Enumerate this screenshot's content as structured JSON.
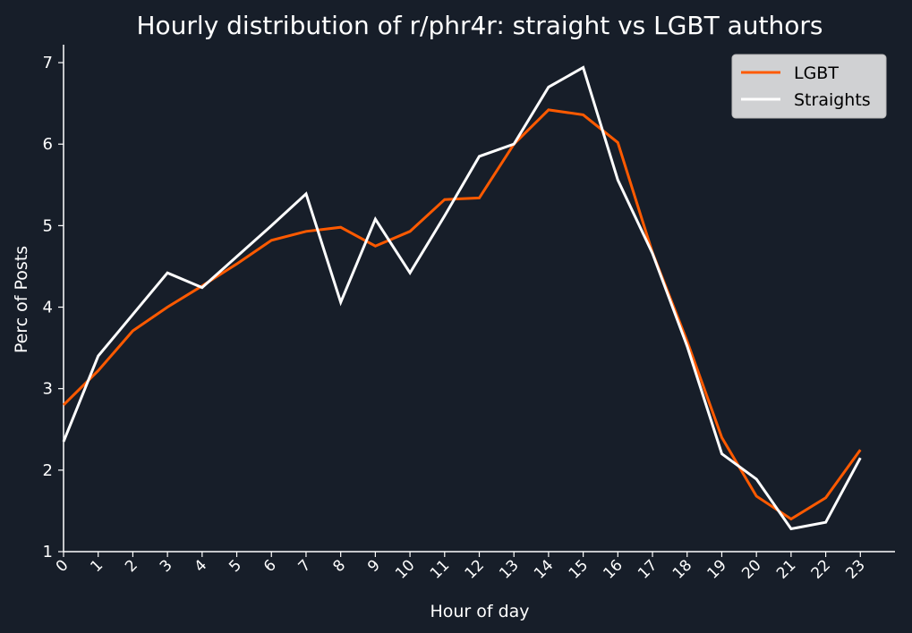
{
  "colors": {
    "background": "#171e29",
    "axis": "#ffffff",
    "lgbt": "#ff5a00",
    "straights": "#ffffff",
    "legend_bg": "#d0d1d3"
  },
  "chart_data": {
    "type": "line",
    "title": "Hourly distribution of r/phr4r: straight vs LGBT authors",
    "xlabel": "Hour of day",
    "ylabel": "Perc of Posts",
    "x": [
      0,
      1,
      2,
      3,
      4,
      5,
      6,
      7,
      8,
      9,
      10,
      11,
      12,
      13,
      14,
      15,
      16,
      17,
      18,
      19,
      20,
      21,
      22,
      23
    ],
    "xticks": [
      "0",
      "1",
      "2",
      "3",
      "4",
      "5",
      "6",
      "7",
      "8",
      "9",
      "10",
      "11",
      "12",
      "13",
      "14",
      "15",
      "16",
      "17",
      "18",
      "19",
      "20",
      "21",
      "22",
      "23"
    ],
    "yticks": [
      "1",
      "2",
      "3",
      "4",
      "5",
      "6",
      "7"
    ],
    "xlim": [
      0,
      24
    ],
    "ylim": [
      1,
      7.22
    ],
    "grid": false,
    "legend": "top-right",
    "series": [
      {
        "name": "LGBT",
        "color": "#ff5a00",
        "values": [
          2.8,
          3.22,
          3.71,
          4.0,
          4.26,
          4.53,
          4.82,
          4.93,
          4.98,
          4.75,
          4.93,
          5.32,
          5.34,
          6.0,
          6.42,
          6.36,
          6.02,
          4.67,
          3.58,
          2.4,
          1.68,
          1.4,
          1.66,
          2.25
        ]
      },
      {
        "name": "Straights",
        "color": "#ffffff",
        "values": [
          2.35,
          3.4,
          3.91,
          4.42,
          4.24,
          4.62,
          5.0,
          5.39,
          4.06,
          5.08,
          4.42,
          5.12,
          5.85,
          6.0,
          6.7,
          6.94,
          5.56,
          4.66,
          3.52,
          2.2,
          1.89,
          1.28,
          1.36,
          2.15
        ]
      }
    ]
  }
}
